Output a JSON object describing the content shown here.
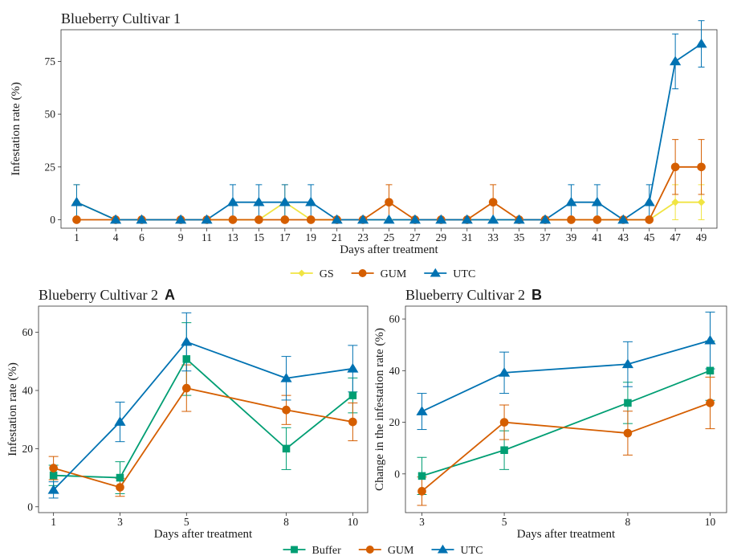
{
  "colors": {
    "GS": "#f0e442",
    "GUM": "#d55e00",
    "UTC": "#0072b2",
    "Buffer": "#009e73"
  },
  "chart_data": [
    {
      "type": "line",
      "title": "Blueberry Cultivar 1",
      "xlabel": "Days after treatment",
      "ylabel": "Infestation rate (%)",
      "x": [
        1,
        4,
        6,
        9,
        11,
        13,
        15,
        17,
        19,
        21,
        23,
        25,
        27,
        29,
        31,
        33,
        35,
        37,
        39,
        41,
        43,
        45,
        47,
        49
      ],
      "xticks": [
        1,
        4,
        6,
        9,
        11,
        13,
        15,
        17,
        19,
        21,
        23,
        25,
        27,
        29,
        31,
        33,
        35,
        37,
        39,
        41,
        43,
        45,
        47,
        49
      ],
      "yticks": [
        0,
        25,
        50,
        75
      ],
      "xlim": [
        -0.2,
        50.2
      ],
      "ylim": [
        -4,
        90
      ],
      "grid": false,
      "legend": "bottom",
      "series": [
        {
          "name": "GS",
          "marker": "diamond",
          "values": [
            8.3,
            0,
            0,
            0,
            0,
            0,
            0,
            8.3,
            0,
            0,
            0,
            0,
            0,
            0,
            0,
            0,
            0,
            0,
            0,
            0,
            0,
            0,
            8.3,
            8.3
          ],
          "errors": [
            8.3,
            0,
            0,
            0,
            0,
            0,
            0,
            8.3,
            0,
            0,
            0,
            0,
            0,
            0,
            0,
            0,
            0,
            0,
            0,
            0,
            0,
            0,
            8.3,
            8.3
          ]
        },
        {
          "name": "GUM",
          "marker": "circle",
          "values": [
            0,
            0,
            0,
            0,
            0,
            0,
            0,
            0,
            0,
            0,
            0,
            8.3,
            0,
            0,
            0,
            8.3,
            0,
            0,
            0,
            0,
            0,
            0,
            25,
            25
          ],
          "errors": [
            0,
            0,
            0,
            0,
            0,
            0,
            0,
            0,
            0,
            0,
            0,
            8.3,
            0,
            0,
            0,
            8.3,
            0,
            0,
            0,
            0,
            0,
            0,
            13,
            13
          ]
        },
        {
          "name": "UTC",
          "marker": "triangle",
          "values": [
            8.3,
            0,
            0,
            0,
            0,
            8.3,
            8.3,
            8.3,
            8.3,
            0,
            0,
            0,
            0,
            0,
            0,
            0,
            0,
            0,
            8.3,
            8.3,
            0,
            8.3,
            75,
            83.3
          ],
          "errors": [
            8.3,
            0,
            0,
            0,
            0,
            8.3,
            8.3,
            8.3,
            8.3,
            0,
            0,
            0,
            0,
            0,
            0,
            0,
            0,
            0,
            8.3,
            8.3,
            0,
            8.3,
            13,
            11
          ]
        }
      ]
    },
    {
      "type": "line",
      "title": "Blueberry Cultivar 2",
      "panel": "A",
      "xlabel": "Days after treatment",
      "ylabel": "Infestation rate (%)",
      "x": [
        1,
        3,
        5,
        8,
        10
      ],
      "xticks": [
        1,
        3,
        5,
        8,
        10
      ],
      "yticks": [
        0,
        20,
        40,
        60
      ],
      "xlim": [
        0.55,
        10.45
      ],
      "ylim": [
        -2,
        69
      ],
      "grid": false,
      "legend": "bottom",
      "series": [
        {
          "name": "Buffer",
          "marker": "square",
          "values": [
            10.8,
            10,
            50.8,
            20,
            38.3
          ],
          "errors": [
            3.5,
            5.5,
            12.5,
            7.2,
            6
          ]
        },
        {
          "name": "GUM",
          "marker": "circle",
          "values": [
            13.3,
            6.7,
            40.8,
            33.3,
            29.2
          ],
          "errors": [
            4,
            3.1,
            8,
            5,
            6.5
          ]
        },
        {
          "name": "UTC",
          "marker": "triangle",
          "values": [
            5.8,
            29.2,
            56.7,
            44.2,
            47.5
          ],
          "errors": [
            2.8,
            6.8,
            10,
            7.5,
            8
          ]
        }
      ]
    },
    {
      "type": "line",
      "title": "Blueberry Cultivar 2",
      "panel": "B",
      "xlabel": "Days after treatment",
      "ylabel": "Change in the infestation rate (%)",
      "x": [
        3,
        5,
        8,
        10
      ],
      "xticks": [
        3,
        5,
        8,
        10
      ],
      "yticks": [
        0,
        20,
        40,
        60
      ],
      "xlim": [
        2.6,
        10.4
      ],
      "ylim": [
        -15,
        65
      ],
      "grid": false,
      "legend": "bottom",
      "series": [
        {
          "name": "Buffer",
          "marker": "square",
          "values": [
            -0.8,
            9.2,
            27.5,
            40
          ],
          "errors": [
            7.2,
            7.5,
            8,
            11.5
          ]
        },
        {
          "name": "GUM",
          "marker": "circle",
          "values": [
            -6.7,
            20,
            15.8,
            27.5
          ],
          "errors": [
            5.5,
            6.7,
            8.5,
            10
          ]
        },
        {
          "name": "UTC",
          "marker": "triangle",
          "values": [
            24.2,
            39.2,
            42.5,
            51.7
          ],
          "errors": [
            7,
            8,
            8.7,
            11
          ]
        }
      ]
    }
  ],
  "legends": {
    "top": [
      "GS",
      "GUM",
      "UTC"
    ],
    "bottom": [
      "Buffer",
      "GUM",
      "UTC"
    ]
  }
}
